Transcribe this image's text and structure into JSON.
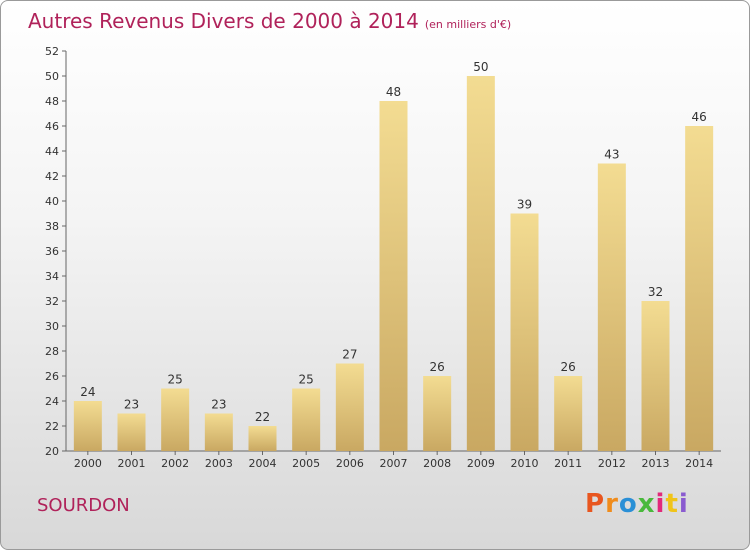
{
  "header": {
    "title": "Autres Revenus Divers de 2000 à 2014",
    "unit": "(en milliers d'€)"
  },
  "footer": {
    "place": "SOURDON",
    "logo_text": "Proxiti",
    "logo_colors": [
      "#e8561f",
      "#f08c1c",
      "#2a8fd6",
      "#49b93c",
      "#e2297a",
      "#f0c419",
      "#8a5bd0"
    ]
  },
  "chart_data": {
    "type": "bar",
    "title": "Autres Revenus Divers de 2000 à 2014",
    "subtitle": "(en milliers d'€)",
    "categories": [
      "2000",
      "2001",
      "2002",
      "2003",
      "2004",
      "2005",
      "2006",
      "2007",
      "2008",
      "2009",
      "2010",
      "2011",
      "2012",
      "2013",
      "2014"
    ],
    "values": [
      24,
      23,
      25,
      23,
      22,
      25,
      27,
      48,
      26,
      50,
      39,
      26,
      43,
      32,
      46
    ],
    "ylim": [
      20,
      52
    ],
    "ytick_step": 2,
    "grid": false,
    "bar_color_top": "#f3dc92",
    "bar_color_bottom": "#c9a862"
  }
}
